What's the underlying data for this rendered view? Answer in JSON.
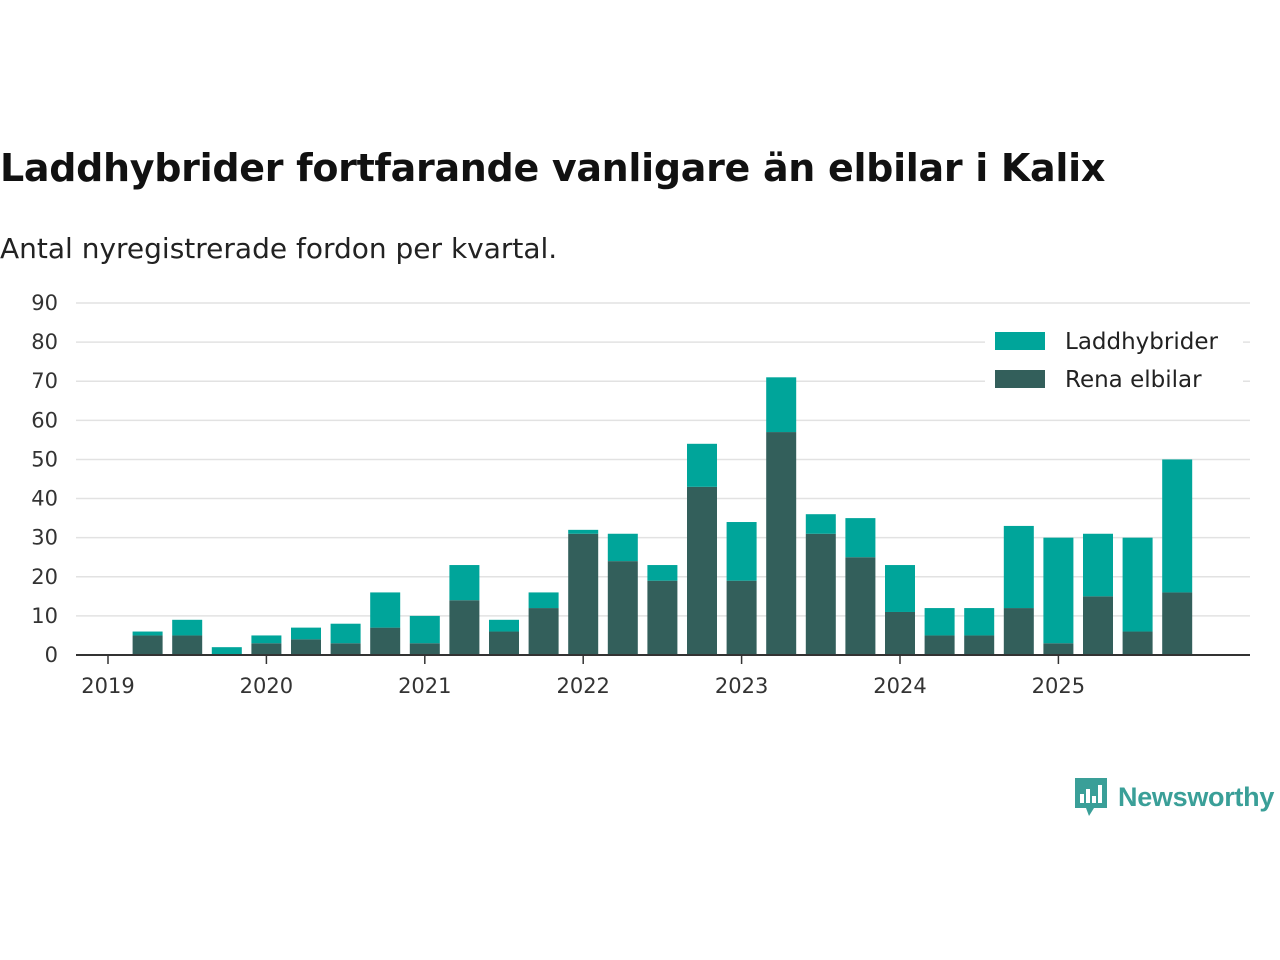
{
  "header": {
    "title": "Laddhybrider fortfarande vanligare än elbilar i Kalix",
    "subtitle": "Antal nyregistrerade fordon per kvartal."
  },
  "brand": {
    "name": "Newsworthy",
    "icon": "newsworthy-logo-icon"
  },
  "colors": {
    "laddhybrider": "#00a59a",
    "rena_elbilar": "#335f5b",
    "grid": "#e2e2e2",
    "axis": "#333333"
  },
  "chart_data": {
    "type": "bar",
    "stacked": true,
    "title": "Laddhybrider fortfarande vanligare än elbilar i Kalix",
    "subtitle": "Antal nyregistrerade fordon per kvartal.",
    "xlabel": "",
    "ylabel": "",
    "ylim": [
      0,
      90
    ],
    "yticks": [
      0,
      10,
      20,
      30,
      40,
      50,
      60,
      70,
      80,
      90
    ],
    "xticks": [
      "2019",
      "2020",
      "2021",
      "2022",
      "2023",
      "2024",
      "2025"
    ],
    "legend_position": "top-right",
    "categories": [
      "2019 Q1",
      "2019 Q2",
      "2019 Q3",
      "2019 Q4",
      "2020 Q1",
      "2020 Q2",
      "2020 Q3",
      "2020 Q4",
      "2021 Q1",
      "2021 Q2",
      "2021 Q3",
      "2021 Q4",
      "2022 Q1",
      "2022 Q2",
      "2022 Q3",
      "2022 Q4",
      "2023 Q1",
      "2023 Q2",
      "2023 Q3",
      "2023 Q4",
      "2024 Q1",
      "2024 Q2",
      "2024 Q3",
      "2024 Q4",
      "2025 Q1",
      "2025 Q2",
      "2025 Q3",
      "2025 Q4"
    ],
    "series": [
      {
        "name": "Rena elbilar",
        "values": [
          0,
          5,
          5,
          0,
          3,
          4,
          3,
          7,
          3,
          14,
          6,
          12,
          31,
          24,
          19,
          43,
          19,
          57,
          31,
          25,
          11,
          5,
          5,
          12,
          3,
          15,
          6,
          16
        ]
      },
      {
        "name": "Laddhybrider",
        "values": [
          0,
          1,
          4,
          2,
          2,
          3,
          5,
          9,
          7,
          9,
          3,
          4,
          1,
          7,
          4,
          11,
          15,
          14,
          5,
          10,
          12,
          7,
          7,
          21,
          27,
          16,
          24,
          34
        ]
      }
    ]
  }
}
